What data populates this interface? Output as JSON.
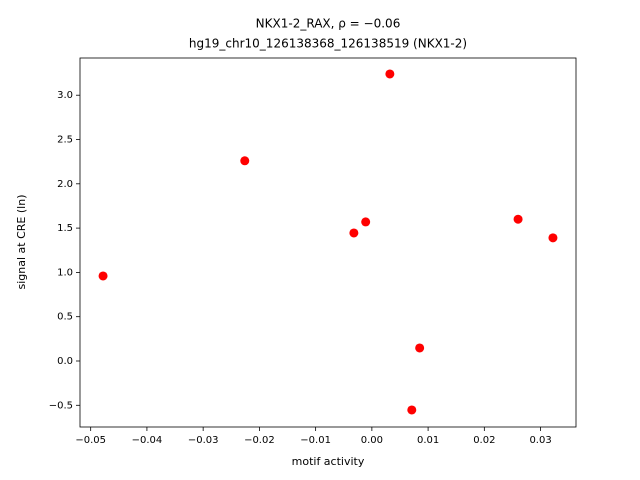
{
  "chart_data": {
    "type": "scatter",
    "title": "NKX1-2_RAX, ρ = −0.06",
    "subtitle": "hg19_chr10_126138368_126138519 (NKX1-2)",
    "x_label": "motif activity",
    "y_label": "signal at CRE (ln)",
    "color": "#ff0000",
    "x": [
      -0.0478,
      -0.0226,
      -0.0032,
      -0.0011,
      0.0032,
      0.0071,
      0.0085,
      0.026,
      0.0322
    ],
    "values": [
      0.96,
      2.26,
      1.445,
      1.57,
      3.24,
      -0.553,
      0.147,
      1.6,
      1.39
    ],
    "xlim": [
      -0.0519,
      0.0363
    ],
    "ylim": [
      -0.745,
      3.42
    ],
    "xticks": [
      {
        "value": -0.05,
        "label": "−0.05"
      },
      {
        "value": -0.04,
        "label": "−0.04"
      },
      {
        "value": -0.03,
        "label": "−0.03"
      },
      {
        "value": -0.02,
        "label": "−0.02"
      },
      {
        "value": -0.01,
        "label": "−0.01"
      },
      {
        "value": 0,
        "label": "0.00"
      },
      0.01,
      0.02,
      0.03
    ],
    "yticks": [
      {
        "value": -0.5,
        "label": "−0.5"
      },
      {
        "value": 0,
        "label": "0.0"
      },
      0.5,
      {
        "value": 1,
        "label": "1.0"
      },
      1.5,
      {
        "value": 2,
        "label": "2.0"
      },
      2.5,
      {
        "value": 3,
        "label": "3.0"
      }
    ]
  }
}
